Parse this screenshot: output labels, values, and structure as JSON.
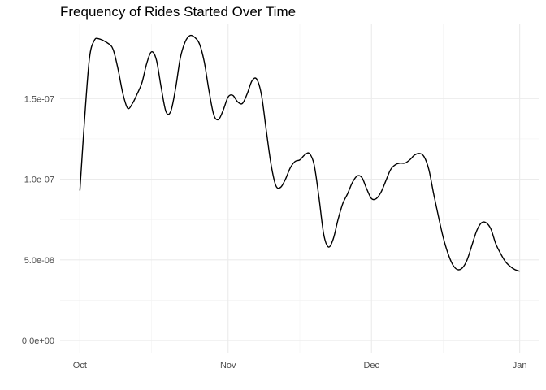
{
  "chart_data": {
    "type": "line",
    "title": "Frequency of Rides Started Over Time",
    "xlabel": "",
    "ylabel": "",
    "x_axis_type": "date",
    "xlim": [
      "2023-10-01",
      "2024-01-01"
    ],
    "ylim": [
      -8e-09,
      1.96e-07
    ],
    "x_ticks": [
      {
        "value": "2023-10-01",
        "label": "Oct"
      },
      {
        "value": "2023-11-01",
        "label": "Nov"
      },
      {
        "value": "2023-12-01",
        "label": "Dec"
      },
      {
        "value": "2024-01-01",
        "label": "Jan"
      }
    ],
    "x_minor_ticks": [
      "2023-10-16",
      "2023-11-16",
      "2023-12-16"
    ],
    "y_ticks": [
      {
        "value": 0,
        "label": "0.0e+00"
      },
      {
        "value": 5e-08,
        "label": "5.0e-08"
      },
      {
        "value": 1e-07,
        "label": "1.0e-07"
      },
      {
        "value": 1.5e-07,
        "label": "1.5e-07"
      }
    ],
    "y_minor_ticks": [
      2.5e-08,
      7.5e-08,
      1.25e-07,
      1.75e-07
    ],
    "grid": true,
    "series": [
      {
        "x": [
          "2023-10-01",
          "2023-10-02",
          "2023-10-03",
          "2023-10-04",
          "2023-10-05",
          "2023-10-07",
          "2023-10-08",
          "2023-10-09",
          "2023-10-10",
          "2023-10-11",
          "2023-10-12",
          "2023-10-13",
          "2023-10-14",
          "2023-10-15",
          "2023-10-16",
          "2023-10-17",
          "2023-10-18",
          "2023-10-19",
          "2023-10-20",
          "2023-10-21",
          "2023-10-22",
          "2023-10-23",
          "2023-10-24",
          "2023-10-25",
          "2023-10-26",
          "2023-10-27",
          "2023-10-28",
          "2023-10-29",
          "2023-10-30",
          "2023-10-31",
          "2023-11-01",
          "2023-11-02",
          "2023-11-03",
          "2023-11-04",
          "2023-11-05",
          "2023-11-06",
          "2023-11-07",
          "2023-11-08",
          "2023-11-09",
          "2023-11-10",
          "2023-11-11",
          "2023-11-12",
          "2023-11-13",
          "2023-11-14",
          "2023-11-15",
          "2023-11-16",
          "2023-11-17",
          "2023-11-18",
          "2023-11-19",
          "2023-11-20",
          "2023-11-21",
          "2023-11-22",
          "2023-11-23",
          "2023-11-24",
          "2023-11-25",
          "2023-11-26",
          "2023-11-27",
          "2023-11-28",
          "2023-11-29",
          "2023-11-30",
          "2023-12-01",
          "2023-12-02",
          "2023-12-03",
          "2023-12-04",
          "2023-12-05",
          "2023-12-06",
          "2023-12-07",
          "2023-12-08",
          "2023-12-09",
          "2023-12-10",
          "2023-12-11",
          "2023-12-12",
          "2023-12-13",
          "2023-12-14",
          "2023-12-15",
          "2023-12-16",
          "2023-12-17",
          "2023-12-18",
          "2023-12-19",
          "2023-12-20",
          "2023-12-21",
          "2023-12-22",
          "2023-12-23",
          "2023-12-24",
          "2023-12-25",
          "2023-12-26",
          "2023-12-27",
          "2023-12-28",
          "2023-12-29",
          "2023-12-30",
          "2023-12-31",
          "2024-01-01"
        ],
        "y": [
          9.3e-08,
          1.38e-07,
          1.75e-07,
          1.86e-07,
          1.87e-07,
          1.84e-07,
          1.8e-07,
          1.68e-07,
          1.53e-07,
          1.44e-07,
          1.47e-07,
          1.53e-07,
          1.6e-07,
          1.72e-07,
          1.79e-07,
          1.74e-07,
          1.57e-07,
          1.42e-07,
          1.42e-07,
          1.56e-07,
          1.75e-07,
          1.85e-07,
          1.89e-07,
          1.88e-07,
          1.84e-07,
          1.73e-07,
          1.55e-07,
          1.4e-07,
          1.37e-07,
          1.43e-07,
          1.51e-07,
          1.52e-07,
          1.48e-07,
          1.47e-07,
          1.53e-07,
          1.61e-07,
          1.62e-07,
          1.52e-07,
          1.3e-07,
          1.09e-07,
          9.6e-08,
          9.5e-08,
          1e-07,
          1.07e-07,
          1.11e-07,
          1.12e-07,
          1.15e-07,
          1.16e-07,
          1.09e-07,
          8.9e-08,
          6.6e-08,
          5.8e-08,
          6.3e-08,
          7.5e-08,
          8.5e-08,
          9.1e-08,
          9.8e-08,
          1.02e-07,
          1.01e-07,
          9.4e-08,
          8.8e-08,
          8.8e-08,
          9.2e-08,
          9.9e-08,
          1.06e-07,
          1.09e-07,
          1.1e-07,
          1.1e-07,
          1.12e-07,
          1.15e-07,
          1.16e-07,
          1.14e-07,
          1.06e-07,
          9.1e-08,
          7.7e-08,
          6.4e-08,
          5.4e-08,
          4.7e-08,
          4.4e-08,
          4.5e-08,
          5e-08,
          5.9e-08,
          6.8e-08,
          7.3e-08,
          7.3e-08,
          6.9e-08,
          6e-08,
          5.4e-08,
          4.9e-08,
          4.6e-08,
          4.4e-08,
          4.3e-08
        ]
      }
    ]
  }
}
